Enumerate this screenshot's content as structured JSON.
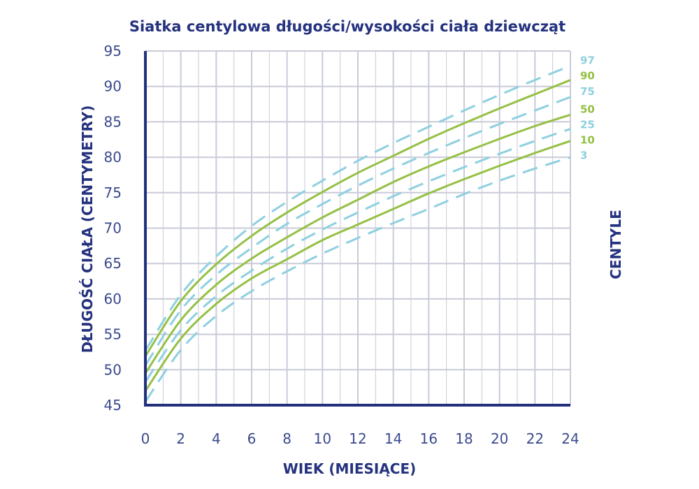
{
  "colors": {
    "axis": "#22307c",
    "grid": "#c9cbd8",
    "solid_line": "#95c044",
    "dashed_line": "#8ed0e0",
    "text": "#25327e"
  },
  "chart_data": {
    "type": "line",
    "title": "Siatka centylowa długości/wysokości ciała dziewcząt",
    "xlabel": "WIEK (MIESIĄCE)",
    "ylabel": "DŁUGOŚĆ CIAŁA (CENTYMETRY)",
    "legend_title": "CENTYLE",
    "legend_position": "right",
    "grid": true,
    "xlim": [
      0,
      24
    ],
    "ylim": [
      45,
      95
    ],
    "x_ticks": [
      "0",
      "2",
      "4",
      "6",
      "8",
      "10",
      "12",
      "14",
      "16",
      "18",
      "20",
      "22",
      "24"
    ],
    "y_ticks": [
      "45",
      "50",
      "55",
      "60",
      "65",
      "70",
      "75",
      "80",
      "85",
      "90",
      "95"
    ],
    "x": [
      0,
      2,
      4,
      6,
      8,
      10,
      12,
      14,
      16,
      18,
      20,
      22,
      24
    ],
    "series": [
      {
        "name": "97",
        "style": "dashed",
        "values": [
          52.7,
          60.6,
          66.0,
          70.3,
          73.7,
          76.7,
          79.5,
          82.0,
          84.3,
          86.6,
          88.8,
          90.9,
          92.9
        ]
      },
      {
        "name": "90",
        "style": "solid",
        "values": [
          51.9,
          59.7,
          64.9,
          68.9,
          72.2,
          75.1,
          77.8,
          80.2,
          82.6,
          84.8,
          86.9,
          88.9,
          90.9
        ]
      },
      {
        "name": "75",
        "style": "dashed",
        "values": [
          50.6,
          58.4,
          63.4,
          67.2,
          70.6,
          73.4,
          76.0,
          78.4,
          80.6,
          82.7,
          84.7,
          86.6,
          88.5
        ]
      },
      {
        "name": "50",
        "style": "solid",
        "values": [
          49.5,
          57.0,
          62.0,
          65.7,
          68.7,
          71.5,
          74.0,
          76.5,
          78.7,
          80.7,
          82.6,
          84.4,
          86.0
        ]
      },
      {
        "name": "25",
        "style": "dashed",
        "values": [
          48.3,
          55.6,
          60.4,
          64.0,
          67.1,
          69.8,
          72.2,
          74.5,
          76.6,
          78.6,
          80.5,
          82.3,
          84.0
        ]
      },
      {
        "name": "10",
        "style": "solid",
        "values": [
          47.0,
          54.4,
          59.3,
          62.9,
          65.6,
          68.3,
          70.5,
          72.7,
          74.9,
          76.9,
          78.8,
          80.6,
          82.3
        ]
      },
      {
        "name": "3",
        "style": "dashed",
        "values": [
          45.5,
          52.8,
          57.6,
          61.1,
          63.9,
          66.4,
          68.6,
          70.7,
          72.7,
          74.8,
          76.7,
          78.4,
          80.0
        ]
      }
    ]
  }
}
